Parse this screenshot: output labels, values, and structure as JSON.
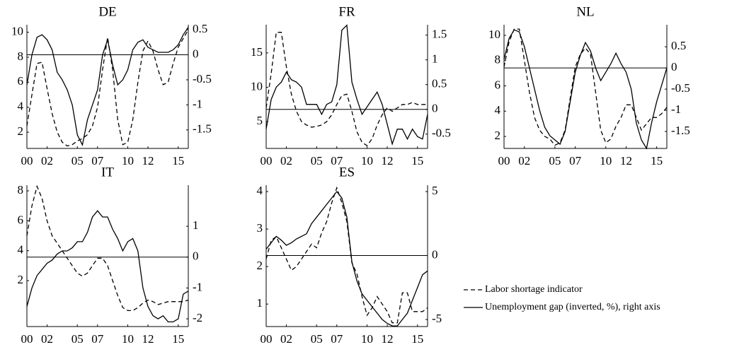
{
  "chart_data": [
    {
      "type": "line",
      "title": "DE",
      "x": [
        0,
        0.5,
        1,
        1.5,
        2,
        2.5,
        3,
        3.5,
        4,
        4.5,
        5,
        5.5,
        6,
        6.5,
        7,
        7.5,
        8,
        8.5,
        9,
        9.5,
        10,
        10.5,
        11,
        11.5,
        12,
        12.5,
        13,
        13.5,
        14,
        14.5,
        15,
        15.5,
        16
      ],
      "xlim": [
        0,
        16
      ],
      "xticks": [
        {
          "value": 0,
          "label": "00"
        },
        {
          "value": 2,
          "label": "02"
        },
        {
          "value": 5,
          "label": "05"
        },
        {
          "value": 7,
          "label": "07"
        },
        {
          "value": 10,
          "label": "10"
        },
        {
          "value": 12,
          "label": "12"
        },
        {
          "value": 15,
          "label": "15"
        }
      ],
      "ylim": [
        0.7,
        10.6
      ],
      "yticks": [
        2,
        4,
        6,
        8,
        10
      ],
      "y2lim": [
        -1.87,
        0.6
      ],
      "y2ticks": [
        -1.5,
        -1,
        -0.5,
        0,
        0.5
      ],
      "series": [
        {
          "line": "dashed",
          "values": [
            2.5,
            5,
            7.5,
            7.6,
            5.5,
            3.5,
            2,
            1.2,
            0.9,
            1,
            1.3,
            1.5,
            1.8,
            2.5,
            4,
            7,
            9.6,
            7,
            3,
            1,
            1.2,
            3,
            6,
            8.5,
            9.3,
            8.5,
            7,
            5.8,
            6,
            7.5,
            8.8,
            9.5,
            10.2
          ]
        },
        {
          "line": "solid",
          "axis": "y2",
          "values": [
            -0.6,
            0,
            0.35,
            0.4,
            0.3,
            0.1,
            -0.35,
            -0.5,
            -0.7,
            -1,
            -1.6,
            -1.8,
            -1.3,
            -1,
            -0.7,
            0,
            0.3,
            -0.2,
            -0.6,
            -0.5,
            -0.3,
            0.1,
            0.25,
            0.3,
            0.15,
            0.1,
            0.05,
            0.05,
            0.05,
            0.1,
            0.2,
            0.4,
            0.55
          ]
        }
      ]
    },
    {
      "type": "line",
      "title": "FR",
      "x": [
        0,
        0.5,
        1,
        1.5,
        2,
        2.5,
        3,
        3.5,
        4,
        4.5,
        5,
        5.5,
        6,
        6.5,
        7,
        7.5,
        8,
        8.5,
        9,
        9.5,
        10,
        10.5,
        11,
        11.5,
        12,
        12.5,
        13,
        13.5,
        14,
        14.5,
        15,
        15.5,
        16
      ],
      "xlim": [
        0,
        16
      ],
      "xticks": [
        {
          "value": 0,
          "label": "00"
        },
        {
          "value": 2,
          "label": "02"
        },
        {
          "value": 5,
          "label": "05"
        },
        {
          "value": 7,
          "label": "07"
        },
        {
          "value": 10,
          "label": "10"
        },
        {
          "value": 12,
          "label": "12"
        },
        {
          "value": 15,
          "label": "15"
        }
      ],
      "ylim": [
        1.1,
        19.1
      ],
      "yticks": [
        5,
        10,
        15
      ],
      "y2lim": [
        -0.79,
        1.71
      ],
      "y2ticks": [
        -0.5,
        0,
        0.5,
        1,
        1.5
      ],
      "series": [
        {
          "line": "dashed",
          "values": [
            7,
            12,
            18,
            18,
            13,
            9,
            6.5,
            5,
            4.5,
            4.2,
            4.3,
            4.5,
            5,
            6,
            7.5,
            8.8,
            9,
            6.5,
            3.5,
            2,
            1.5,
            2.5,
            4.5,
            6,
            7,
            6.5,
            7,
            7.5,
            7.5,
            7.8,
            7.5,
            7.5,
            7.5
          ]
        },
        {
          "line": "solid",
          "axis": "y2",
          "values": [
            -0.4,
            0.2,
            0.45,
            0.55,
            0.75,
            0.6,
            0.55,
            0.45,
            0.1,
            0.1,
            0.1,
            -0.1,
            0.1,
            0.15,
            0.5,
            1.6,
            1.7,
            0.55,
            0.2,
            -0.1,
            0.05,
            0.2,
            0.35,
            0.1,
            -0.3,
            -0.7,
            -0.4,
            -0.4,
            -0.6,
            -0.4,
            -0.55,
            -0.6,
            -0.1
          ]
        }
      ]
    },
    {
      "type": "line",
      "title": "NL",
      "x": [
        0,
        0.5,
        1,
        1.5,
        2,
        2.5,
        3,
        3.5,
        4,
        4.5,
        5,
        5.5,
        6,
        6.5,
        7,
        7.5,
        8,
        8.5,
        9,
        9.5,
        10,
        10.5,
        11,
        11.5,
        12,
        12.5,
        13,
        13.5,
        14,
        14.5,
        15,
        15.5,
        16
      ],
      "xlim": [
        0,
        16
      ],
      "xticks": [
        {
          "value": 0,
          "label": "00"
        },
        {
          "value": 2,
          "label": "02"
        },
        {
          "value": 5,
          "label": "05"
        },
        {
          "value": 7,
          "label": "07"
        },
        {
          "value": 10,
          "label": "10"
        },
        {
          "value": 12,
          "label": "12"
        },
        {
          "value": 15,
          "label": "15"
        }
      ],
      "ylim": [
        1.05,
        10.84
      ],
      "yticks": [
        2,
        4,
        6,
        8,
        10
      ],
      "y2lim": [
        -1.9,
        1.02
      ],
      "y2ticks": [
        -1.5,
        -1,
        -0.5,
        0,
        0.5
      ],
      "series": [
        {
          "line": "dashed",
          "values": [
            7.5,
            9.5,
            10.5,
            10.5,
            8,
            5.5,
            3.5,
            2.5,
            2,
            1.8,
            1.3,
            1.5,
            2.5,
            5,
            7.5,
            8.5,
            9,
            8.5,
            5.5,
            2.5,
            1.5,
            1.8,
            2.8,
            3.5,
            4.5,
            4.5,
            3.5,
            2.5,
            3,
            3.5,
            3.5,
            3.8,
            4.3
          ]
        },
        {
          "line": "solid",
          "axis": "y2",
          "values": [
            0.2,
            0.7,
            0.9,
            0.85,
            0.5,
            0,
            -0.5,
            -1,
            -1.4,
            -1.6,
            -1.7,
            -1.8,
            -1.5,
            -0.8,
            -0.1,
            0.3,
            0.6,
            0.4,
            0,
            -0.3,
            -0.1,
            0.1,
            0.35,
            0.1,
            -0.1,
            -0.5,
            -1.3,
            -1.7,
            -1.9,
            -1.3,
            -0.8,
            -0.4,
            0
          ]
        }
      ]
    },
    {
      "type": "line",
      "title": "IT",
      "x": [
        0,
        0.5,
        1,
        1.5,
        2,
        2.5,
        3,
        3.5,
        4,
        4.5,
        5,
        5.5,
        6,
        6.5,
        7,
        7.5,
        8,
        8.5,
        9,
        9.5,
        10,
        10.5,
        11,
        11.5,
        12,
        12.5,
        13,
        13.5,
        14,
        14.5,
        15,
        15.5,
        16
      ],
      "xlim": [
        0,
        16
      ],
      "xticks": [
        {
          "value": 0,
          "label": "00"
        },
        {
          "value": 2,
          "label": "02"
        },
        {
          "value": 5,
          "label": "05"
        },
        {
          "value": 7,
          "label": "07"
        },
        {
          "value": 10,
          "label": "10"
        },
        {
          "value": 12,
          "label": "12"
        },
        {
          "value": 15,
          "label": "15"
        }
      ],
      "ylim": [
        -1.07,
        8.38
      ],
      "yticks": [
        2,
        4,
        6,
        8
      ],
      "y2lim": [
        -2.25,
        2.33
      ],
      "y2ticks": [
        -2,
        -1,
        0,
        1
      ],
      "series": [
        {
          "line": "dashed",
          "values": [
            5,
            7,
            8.3,
            7.5,
            6,
            5,
            4.5,
            4,
            3.5,
            3,
            2.5,
            2.3,
            2.5,
            3,
            3.5,
            3.5,
            3,
            2,
            1,
            0.2,
            0,
            0,
            0.2,
            0.5,
            0.7,
            0.6,
            0.4,
            0.5,
            0.6,
            0.6,
            0.6,
            0.6,
            0.7
          ]
        },
        {
          "line": "solid",
          "axis": "y2",
          "values": [
            -1.6,
            -1,
            -0.6,
            -0.4,
            -0.2,
            -0.1,
            0.1,
            0.2,
            0.2,
            0.3,
            0.5,
            0.5,
            0.8,
            1.3,
            1.5,
            1.3,
            1.3,
            0.9,
            0.6,
            0.2,
            0.5,
            0.6,
            0.2,
            -1,
            -1.6,
            -1.9,
            -2,
            -1.9,
            -2.1,
            -2.1,
            -2,
            -1.2,
            -1.1
          ]
        }
      ]
    },
    {
      "type": "line",
      "title": "ES",
      "x": [
        0,
        0.5,
        1,
        1.5,
        2,
        2.5,
        3,
        3.5,
        4,
        4.5,
        5,
        5.5,
        6,
        6.5,
        7,
        7.5,
        8,
        8.5,
        9,
        9.5,
        10,
        10.5,
        11,
        11.5,
        12,
        12.5,
        13,
        13.5,
        14,
        14.5,
        15,
        15.5,
        16
      ],
      "xlim": [
        0,
        16
      ],
      "xticks": [
        {
          "value": 0,
          "label": "00"
        },
        {
          "value": 2,
          "label": "02"
        },
        {
          "value": 5,
          "label": "05"
        },
        {
          "value": 7,
          "label": "07"
        },
        {
          "value": 10,
          "label": "10"
        },
        {
          "value": 12,
          "label": "12"
        },
        {
          "value": 15,
          "label": "15"
        }
      ],
      "ylim": [
        0.4,
        4.17
      ],
      "yticks": [
        1,
        2,
        3,
        4
      ],
      "y2lim": [
        -5.55,
        5.5
      ],
      "y2ticks": [
        -5,
        0,
        5
      ],
      "series": [
        {
          "line": "dashed",
          "values": [
            2.2,
            2.7,
            2.8,
            2.5,
            2.2,
            1.9,
            2,
            2.2,
            2.4,
            2.6,
            2.5,
            2.9,
            3.2,
            3.7,
            4.1,
            3.7,
            3.2,
            2.1,
            1.8,
            1.2,
            0.7,
            0.9,
            1.2,
            1,
            0.8,
            0.5,
            0.5,
            1.3,
            1.3,
            0.8,
            0.8,
            0.8,
            0.9
          ]
        },
        {
          "line": "solid",
          "axis": "y2",
          "values": [
            0.5,
            1,
            1.5,
            1.2,
            0.8,
            1,
            1.3,
            1.5,
            1.7,
            2.5,
            3,
            3.5,
            4,
            4.5,
            5,
            4.5,
            3,
            -0.5,
            -2,
            -3,
            -3.5,
            -4,
            -4.5,
            -5,
            -5.3,
            -5.5,
            -5.5,
            -5,
            -4.5,
            -3.5,
            -2.5,
            -1.5,
            -1.2
          ]
        }
      ]
    }
  ],
  "legend": [
    {
      "name": "Labor shortage indicator",
      "line": "dashed"
    },
    {
      "name": "Unemployment gap (inverted, %), right axis",
      "line": "solid"
    }
  ]
}
